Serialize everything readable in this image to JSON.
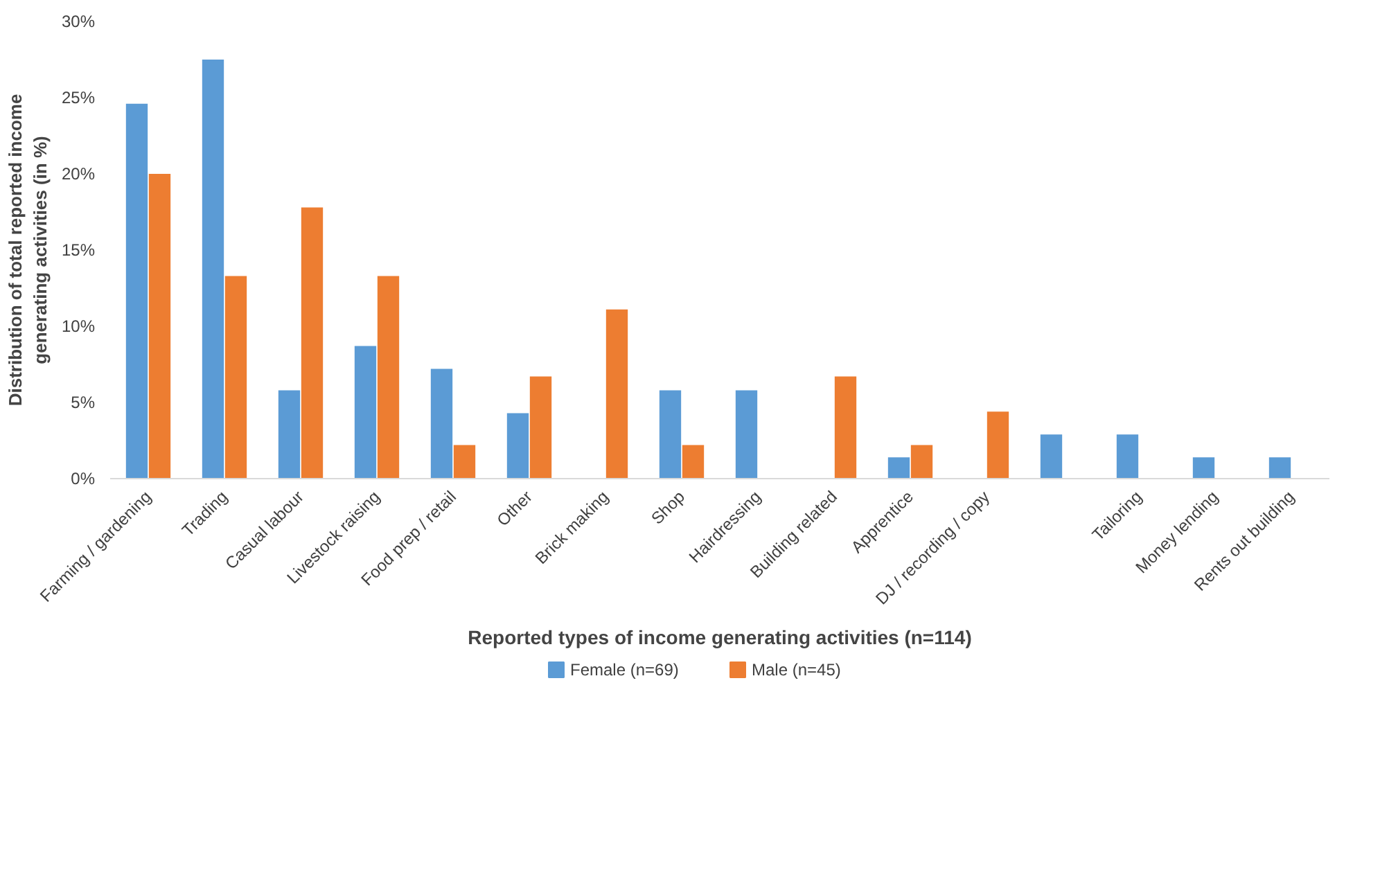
{
  "chart_data": {
    "type": "bar",
    "xlabel": "Reported types of income generating activities (n=114)",
    "ylabel": "Distribution of total reported income generating activities (in %)",
    "categories": [
      "Farming / gardening",
      "Trading",
      "Casual labour",
      "Livestock raising",
      "Food prep / retail",
      "Other",
      "Brick making",
      "Shop",
      "Hairdressing",
      "Building related",
      "Apprentice",
      "DJ / recording / copy",
      null,
      "Tailoring",
      "Money lending",
      "Rents out building"
    ],
    "series": [
      {
        "name": "Female (n=69)",
        "color": "#5b9bd5",
        "values": [
          24.6,
          27.5,
          5.8,
          8.7,
          7.2,
          4.3,
          0,
          5.8,
          5.8,
          0,
          1.4,
          0,
          2.9,
          2.9,
          1.4,
          1.4
        ]
      },
      {
        "name": "Male (n=45)",
        "color": "#ed7d31",
        "values": [
          20.0,
          13.3,
          17.8,
          13.3,
          2.2,
          6.7,
          11.1,
          2.2,
          0,
          6.7,
          2.2,
          4.4,
          0,
          0,
          0,
          0
        ]
      }
    ],
    "ylim": [
      0,
      30
    ],
    "yticks": [
      {
        "value": 0,
        "label": "0%"
      },
      {
        "value": 5,
        "label": "5%"
      },
      {
        "value": 10,
        "label": "10%"
      },
      {
        "value": 15,
        "label": "15%"
      },
      {
        "value": 20,
        "label": "20%"
      },
      {
        "value": 25,
        "label": "25%"
      },
      {
        "value": 30,
        "label": "30%"
      }
    ],
    "grid": false,
    "legend": "bottom"
  }
}
